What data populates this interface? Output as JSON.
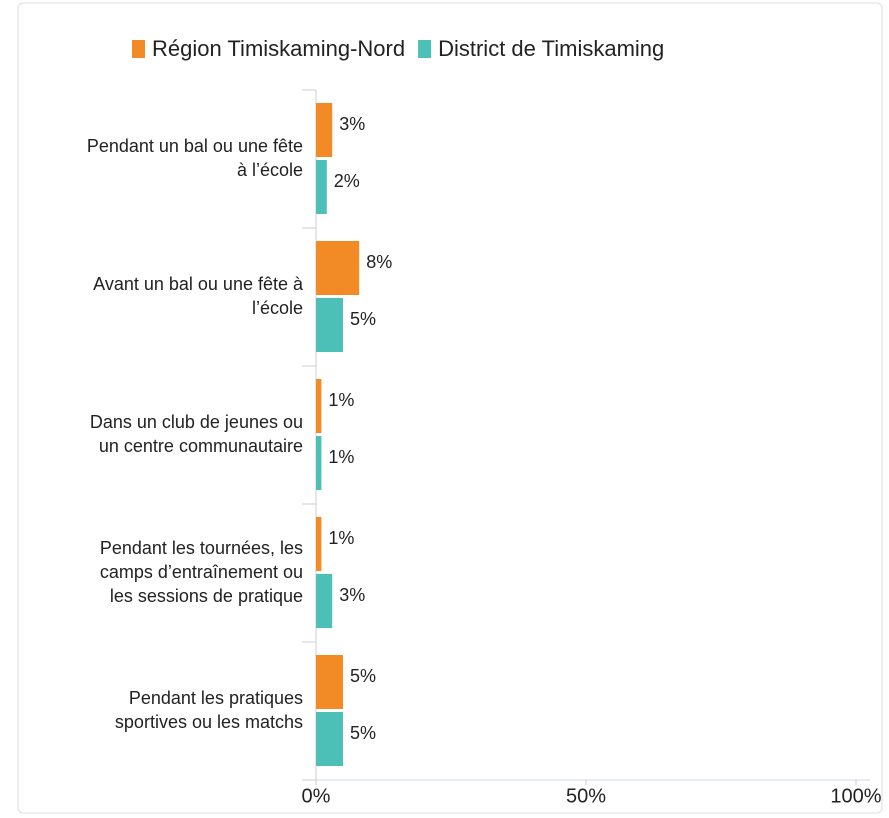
{
  "chart_data": {
    "type": "hbar",
    "categories": [
      [
        "Pendant un bal ou une fête",
        "à l’école"
      ],
      [
        "Avant un bal ou une fête à",
        "l’école"
      ],
      [
        "Dans un club de jeunes ou",
        "un centre communautaire"
      ],
      [
        "Pendant les tournées, les",
        "camps d’entraînement ou",
        "les sessions de pratique"
      ],
      [
        "Pendant les pratiques",
        "sportives ou les matchs"
      ]
    ],
    "series": [
      {
        "name": "Région Timiskaming-Nord",
        "color": "#f28b26",
        "values": [
          3,
          8,
          1,
          1,
          5
        ],
        "value_labels": [
          "3%",
          "8%",
          "1%",
          "1%",
          "5%"
        ]
      },
      {
        "name": "District de Timiskaming",
        "color": "#4cbfb6",
        "values": [
          2,
          5,
          1,
          3,
          5
        ],
        "value_labels": [
          "2%",
          "5%",
          "1%",
          "3%",
          "5%"
        ]
      }
    ],
    "xlim": [
      0,
      100
    ],
    "xticks": [
      {
        "value": 0,
        "label": "0%"
      },
      {
        "value": 50,
        "label": "50%"
      },
      {
        "value": 100,
        "label": "100%"
      }
    ],
    "legend": "top"
  }
}
